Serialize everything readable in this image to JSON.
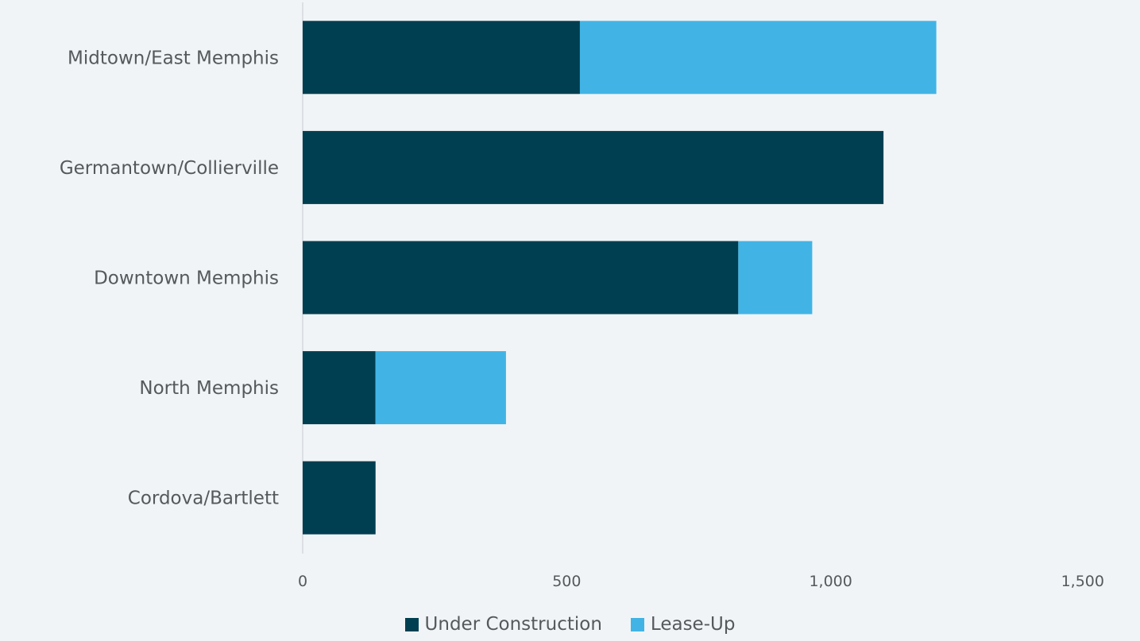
{
  "colors": {
    "under_construction": "#003f51",
    "lease_up": "#41b4e5",
    "axis_line": "#c8ccd0"
  },
  "chart_data": {
    "type": "bar",
    "orientation": "horizontal",
    "stacked": true,
    "categories": [
      "Midtown/East Memphis",
      "Germantown/Collierville",
      "Downtown Memphis",
      "North Memphis",
      "Cordova/Bartlett"
    ],
    "series": [
      {
        "name": "Under Construction",
        "values": [
          525,
          1100,
          825,
          138,
          138
        ]
      },
      {
        "name": "Lease-Up",
        "values": [
          675,
          0,
          140,
          247,
          0
        ]
      }
    ],
    "xlim": [
      0,
      1500
    ],
    "x_ticks": [
      "0",
      "500",
      "1,000",
      "1,500"
    ],
    "grid": false,
    "legend": "bottom"
  }
}
